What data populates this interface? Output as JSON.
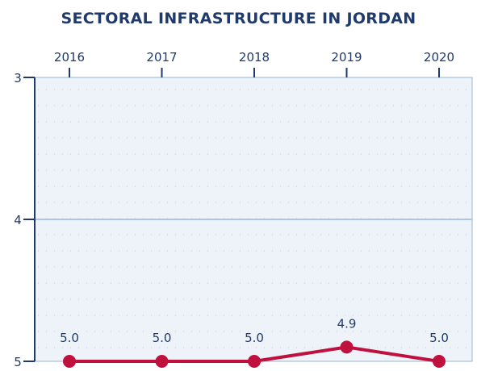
{
  "chart_data": {
    "type": "line",
    "title": "SECTORAL INFRASTRUCTURE IN JORDAN",
    "x": [
      "2016",
      "2017",
      "2018",
      "2019",
      "2020"
    ],
    "series": [
      {
        "values": [
          5.0,
          5.0,
          5.0,
          4.9,
          5.0
        ],
        "data_labels": [
          "5.0",
          "5.0",
          "5.0",
          "4.9",
          "5.0"
        ]
      }
    ],
    "y_ticks": [
      "3",
      "4",
      "5"
    ],
    "ylim": [
      3,
      5
    ],
    "y_inverted": true,
    "x_axis_position": "top",
    "grid": "dotted",
    "colors": {
      "line": "#c0103e",
      "plot_background": "#eef3fa",
      "axis": "#1f3a6b",
      "title": "#1f3a6b",
      "reference_line": "#a9c8e6"
    }
  }
}
